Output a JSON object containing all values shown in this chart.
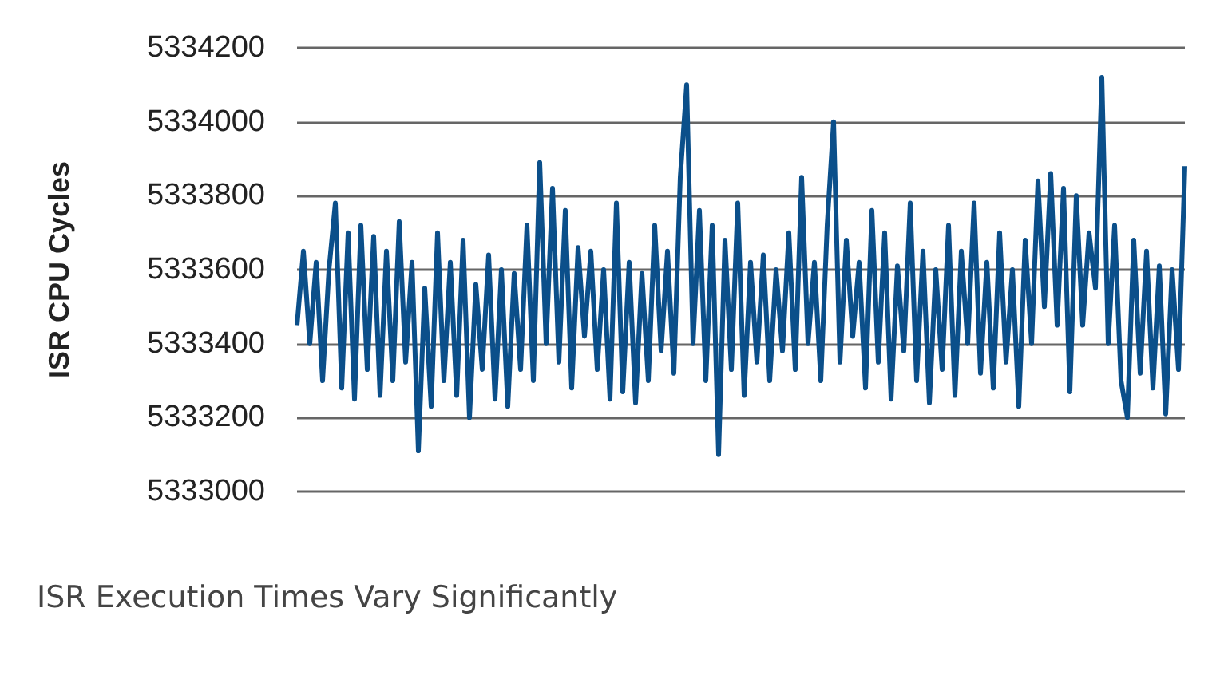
{
  "chart_data": {
    "type": "line",
    "title": "ISR Execution Times Vary Significantly",
    "ylabel": "ISR CPU Cycles",
    "categories": [
      null,
      null,
      null,
      null,
      null,
      null,
      null,
      null,
      null,
      null,
      null,
      null,
      null,
      null,
      null,
      null,
      null,
      null,
      null,
      null,
      null,
      null,
      null,
      null,
      null,
      null,
      null,
      null,
      null,
      null,
      null,
      null,
      null,
      null,
      null,
      null,
      null,
      null,
      null,
      null,
      null,
      null,
      null,
      null,
      null,
      null,
      null,
      null,
      null,
      null,
      null,
      null,
      null,
      null,
      null,
      null,
      null,
      null,
      null,
      null,
      null,
      null,
      null,
      null,
      null,
      null,
      null,
      null,
      null,
      null,
      null,
      null,
      null,
      null,
      null,
      null,
      null,
      null,
      null,
      null,
      null,
      null,
      null,
      null,
      null,
      null,
      null,
      null,
      null,
      null,
      null,
      null,
      null,
      null,
      null,
      null,
      null,
      null,
      null,
      null,
      null,
      null,
      null,
      null,
      null,
      null,
      null,
      null,
      null,
      null,
      null,
      null,
      null,
      null,
      null,
      null,
      null,
      null,
      null,
      null,
      null,
      null,
      null,
      null,
      null,
      null,
      null,
      null,
      null,
      null,
      null,
      null,
      null,
      null,
      null,
      null,
      null,
      null,
      null,
      null
    ],
    "series": [
      {
        "color": "#0b4f8a",
        "values": [
          5333450,
          5333650,
          5333400,
          5333620,
          5333300,
          5333600,
          5333780,
          5333280,
          5333700,
          5333250,
          5333720,
          5333330,
          5333690,
          5333260,
          5333650,
          5333300,
          5333730,
          5333350,
          5333620,
          5333110,
          5333550,
          5333230,
          5333700,
          5333300,
          5333620,
          5333260,
          5333680,
          5333200,
          5333560,
          5333330,
          5333640,
          5333250,
          5333600,
          5333230,
          5333590,
          5333330,
          5333720,
          5333300,
          5333890,
          5333400,
          5333820,
          5333350,
          5333760,
          5333280,
          5333660,
          5333420,
          5333650,
          5333330,
          5333600,
          5333250,
          5333780,
          5333270,
          5333620,
          5333240,
          5333590,
          5333300,
          5333720,
          5333380,
          5333650,
          5333320,
          5333850,
          5334100,
          5333400,
          5333760,
          5333300,
          5333720,
          5333100,
          5333680,
          5333330,
          5333780,
          5333260,
          5333620,
          5333350,
          5333640,
          5333300,
          5333600,
          5333380,
          5333700,
          5333330,
          5333850,
          5333400,
          5333620,
          5333300,
          5333720,
          5334000,
          5333350,
          5333680,
          5333420,
          5333620,
          5333280,
          5333760,
          5333350,
          5333700,
          5333250,
          5333610,
          5333380,
          5333780,
          5333300,
          5333650,
          5333240,
          5333600,
          5333330,
          5333720,
          5333260,
          5333650,
          5333400,
          5333780,
          5333320,
          5333620,
          5333280,
          5333700,
          5333350,
          5333600,
          5333230,
          5333680,
          5333400,
          5333840,
          5333500,
          5333860,
          5333450,
          5333820,
          5333270,
          5333800,
          5333450,
          5333700,
          5333550,
          5334120,
          5333400,
          5333720,
          5333300,
          5333200,
          5333680,
          5333320,
          5333650,
          5333280,
          5333610,
          5333210,
          5333600,
          5333330,
          5333880
        ]
      }
    ],
    "ylim": [
      5333000,
      5334200
    ],
    "yticks": [
      5333000,
      5333200,
      5333400,
      5333600,
      5333800,
      5334000,
      5334200
    ],
    "grid": true,
    "tick_labels": "y",
    "line_style": "solid"
  }
}
